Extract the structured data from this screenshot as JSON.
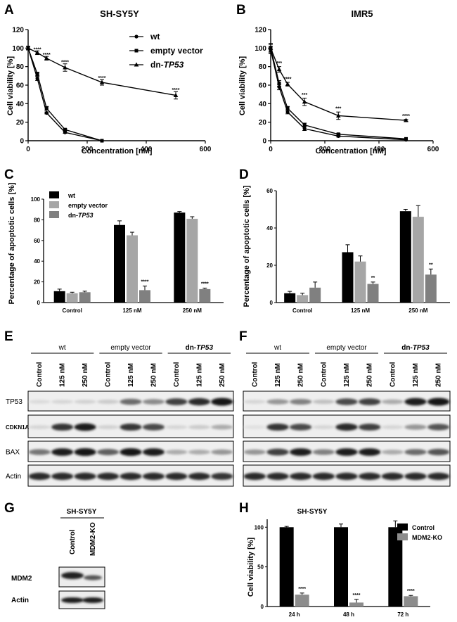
{
  "panels": {
    "A": {
      "letter": "A",
      "title": "SH-SY5Y",
      "ylabel": "Cell viability [%]",
      "xlabel": "Concentration [nM]"
    },
    "B": {
      "letter": "B",
      "title": "IMR5",
      "ylabel": "Cell viability [%]",
      "xlabel": "Concentration [nM]"
    },
    "C": {
      "letter": "C",
      "ylabel": "Percentage of apoptotic cells [%]"
    },
    "D": {
      "letter": "D",
      "ylabel": "Percentage of apoptotic cells [%]"
    },
    "E": {
      "letter": "E"
    },
    "F": {
      "letter": "F"
    },
    "G": {
      "letter": "G",
      "cell_line": "SH-SY5Y",
      "lanes": [
        "Control",
        "MDM2-KO"
      ],
      "bands": [
        "MDM2",
        "Actin"
      ]
    },
    "H": {
      "letter": "H",
      "title": "SH-SY5Y",
      "ylabel": "Cell viability [%]"
    }
  },
  "legend_lines": {
    "wt": {
      "label": "wt",
      "marker": "circle"
    },
    "empty": {
      "label": "empty vector",
      "marker": "square"
    },
    "dn_prefix": "dn-",
    "dn_gene": "TP53"
  },
  "legend_bars": {
    "wt": "wt",
    "empty": "empty vector",
    "dn_prefix": "dn-",
    "dn_gene": "TP53"
  },
  "legend_h": {
    "control": "Control",
    "ko": "MDM2-KO"
  },
  "blots": {
    "groups": [
      "wt",
      "empty vector"
    ],
    "dn_prefix": "dn-",
    "dn_gene": "TP53",
    "lanes": [
      "Control",
      "125 nM",
      "250 nM",
      "Control",
      "125 nM",
      "250 nM",
      "Control",
      "125 nM",
      "250 nM"
    ],
    "rows": [
      "TP53",
      "CDKN1A",
      "BAX",
      "Actin"
    ]
  },
  "colors": {
    "wt": "#000000",
    "empty": "#a6a6a6",
    "dn": "#808080",
    "ko": "#8c8c8c"
  },
  "chart_data": [
    {
      "id": "A",
      "type": "line",
      "title": "SH-SY5Y",
      "xlabel": "Concentration [nM]",
      "ylabel": "Cell viability [%]",
      "xlim": [
        0,
        600
      ],
      "ylim": [
        0,
        120
      ],
      "xticks": [
        0,
        200,
        400,
        600
      ],
      "yticks": [
        0,
        20,
        40,
        60,
        80,
        100,
        120
      ],
      "series": [
        {
          "name": "wt",
          "x": [
            0,
            31.25,
            62.5,
            125,
            250
          ],
          "y": [
            100,
            67,
            30,
            9,
            0
          ],
          "err": [
            2,
            2,
            1,
            1,
            0
          ],
          "marker": "circle"
        },
        {
          "name": "empty vector",
          "x": [
            0,
            31.25,
            62.5,
            125,
            250
          ],
          "y": [
            100,
            72,
            35,
            12,
            0
          ],
          "err": [
            2,
            2,
            2,
            1,
            0
          ],
          "marker": "square"
        },
        {
          "name": "dn-TP53",
          "x": [
            0,
            31.25,
            62.5,
            125,
            250,
            500
          ],
          "y": [
            100,
            95,
            89,
            79,
            63,
            49
          ],
          "err": [
            2,
            2,
            2,
            4,
            3,
            4
          ],
          "marker": "triangle"
        }
      ],
      "annotations": [
        {
          "x": 31.25,
          "y": 97,
          "text": "****"
        },
        {
          "x": 62.5,
          "y": 91,
          "text": "****"
        },
        {
          "x": 125,
          "y": 83,
          "text": "****"
        },
        {
          "x": 250,
          "y": 66,
          "text": "****"
        },
        {
          "x": 500,
          "y": 53,
          "text": "****"
        }
      ]
    },
    {
      "id": "B",
      "type": "line",
      "title": "IMR5",
      "xlabel": "Concentration [nM]",
      "ylabel": "Cell viability [%]",
      "xlim": [
        0,
        600
      ],
      "ylim": [
        0,
        120
      ],
      "xticks": [
        0,
        200,
        400,
        600
      ],
      "yticks": [
        0,
        20,
        40,
        60,
        80,
        100,
        120
      ],
      "series": [
        {
          "name": "wt",
          "x": [
            0,
            31.25,
            62.5,
            125,
            250,
            500
          ],
          "y": [
            98,
            58,
            31,
            13,
            5,
            1
          ],
          "err": [
            4,
            3,
            2,
            2,
            1,
            0
          ],
          "marker": "circle"
        },
        {
          "name": "empty vector",
          "x": [
            0,
            31.25,
            62.5,
            125,
            250,
            500
          ],
          "y": [
            100,
            62,
            35,
            17,
            7,
            2
          ],
          "err": [
            4,
            3,
            2,
            2,
            1,
            0
          ],
          "marker": "square"
        },
        {
          "name": "dn-TP53",
          "x": [
            0,
            31.25,
            62.5,
            125,
            250,
            500
          ],
          "y": [
            100,
            77,
            61,
            42,
            27,
            22
          ],
          "err": [
            5,
            3,
            2,
            4,
            4,
            1
          ],
          "marker": "triangle"
        }
      ],
      "annotations": [
        {
          "x": 31.25,
          "y": 82,
          "text": "***"
        },
        {
          "x": 62.5,
          "y": 65,
          "text": "****"
        },
        {
          "x": 125,
          "y": 48,
          "text": "***"
        },
        {
          "x": 250,
          "y": 33,
          "text": "***"
        },
        {
          "x": 500,
          "y": 25,
          "text": "****"
        }
      ]
    },
    {
      "id": "C",
      "type": "bar",
      "ylabel": "Percentage of apoptotic cells [%]",
      "categories": [
        "Control",
        "125 nM",
        "250 nM"
      ],
      "ylim": [
        0,
        100
      ],
      "yticks": [
        0,
        20,
        40,
        60,
        80,
        100
      ],
      "series": [
        {
          "name": "wt",
          "values": [
            11,
            75,
            87
          ],
          "err": [
            2,
            4,
            1
          ]
        },
        {
          "name": "empty vector",
          "values": [
            9,
            65,
            81
          ],
          "err": [
            1,
            3,
            2
          ]
        },
        {
          "name": "dn-TP53",
          "values": [
            10,
            12,
            13
          ],
          "err": [
            1,
            4,
            1
          ]
        }
      ],
      "annotations": [
        {
          "category": "125 nM",
          "series": "dn-TP53",
          "text": "****"
        },
        {
          "category": "250 nM",
          "series": "dn-TP53",
          "text": "****"
        }
      ]
    },
    {
      "id": "D",
      "type": "bar",
      "ylabel": "Percentage of apoptotic cells [%]",
      "categories": [
        "Control",
        "125 nM",
        "250 nM"
      ],
      "ylim": [
        0,
        60
      ],
      "yticks": [
        0,
        20,
        40,
        60
      ],
      "series": [
        {
          "name": "wt",
          "values": [
            5,
            27,
            49
          ],
          "err": [
            1,
            4,
            1
          ]
        },
        {
          "name": "empty vector",
          "values": [
            4,
            22,
            46
          ],
          "err": [
            1,
            3,
            6
          ]
        },
        {
          "name": "dn-TP53",
          "values": [
            8,
            10,
            15
          ],
          "err": [
            3,
            1,
            3
          ]
        }
      ],
      "annotations": [
        {
          "category": "125 nM",
          "series": "dn-TP53",
          "text": "**"
        },
        {
          "category": "250 nM",
          "series": "dn-TP53",
          "text": "**"
        }
      ]
    },
    {
      "id": "H",
      "type": "bar",
      "title": "SH-SY5Y",
      "ylabel": "Cell viability [%]",
      "categories": [
        "24 h",
        "48 h",
        "72 h"
      ],
      "ylim": [
        0,
        110
      ],
      "yticks": [
        0,
        50,
        100
      ],
      "series": [
        {
          "name": "Control",
          "values": [
            100,
            100,
            100
          ],
          "err": [
            1,
            4,
            8
          ]
        },
        {
          "name": "MDM2-KO",
          "values": [
            15,
            5,
            13
          ],
          "err": [
            2,
            4,
            1
          ]
        }
      ],
      "annotations": [
        {
          "category": "24 h",
          "series": "MDM2-KO",
          "text": "****"
        },
        {
          "category": "48 h",
          "series": "MDM2-KO",
          "text": "****"
        },
        {
          "category": "72 h",
          "series": "MDM2-KO",
          "text": "****"
        }
      ]
    }
  ]
}
